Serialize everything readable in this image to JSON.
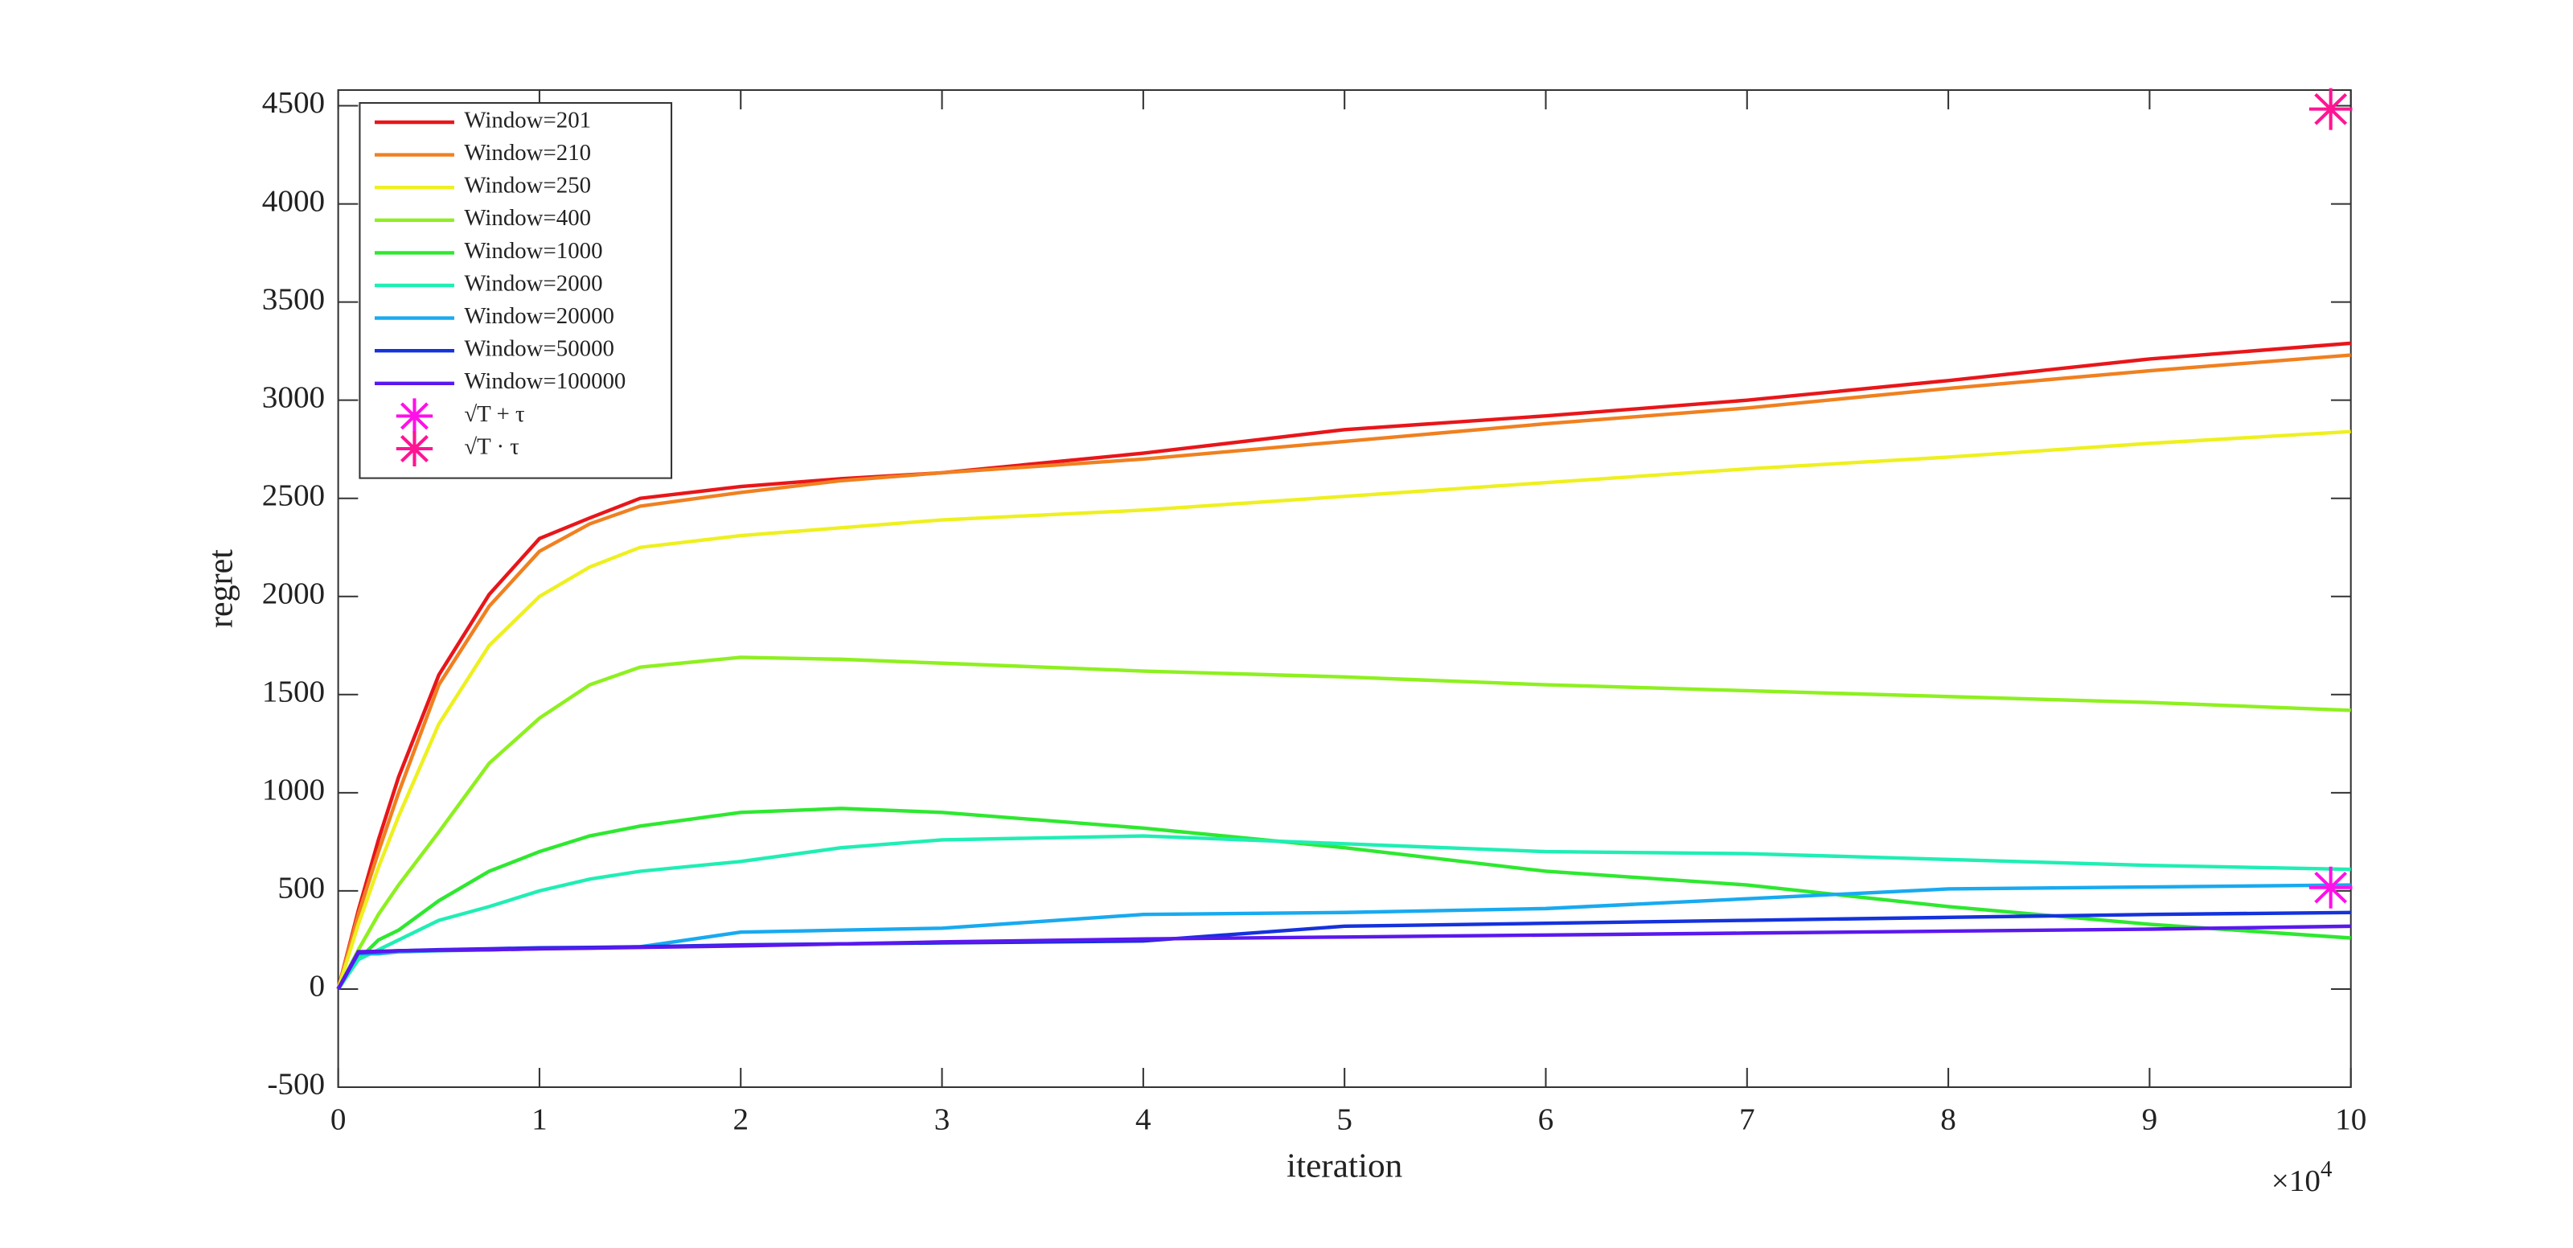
{
  "chart_data": {
    "type": "line",
    "x_label": "iteration",
    "y_label": "regret",
    "x_multiplier": {
      "base": "×10",
      "exponent": "4"
    },
    "x": [
      0,
      1000,
      2000,
      3000,
      5000,
      7500,
      10000,
      12500,
      15000,
      20000,
      25000,
      30000,
      40000,
      50000,
      60000,
      70000,
      80000,
      90000,
      100000
    ],
    "xlim": [
      0,
      100000
    ],
    "xticks": [
      0,
      {
        "value": 10000,
        "label": "1"
      },
      {
        "value": 20000,
        "label": "2"
      },
      {
        "value": 30000,
        "label": "3"
      },
      {
        "value": 40000,
        "label": "4"
      },
      {
        "value": 50000,
        "label": "5"
      },
      {
        "value": 60000,
        "label": "6"
      },
      {
        "value": 70000,
        "label": "7"
      },
      {
        "value": 80000,
        "label": "8"
      },
      {
        "value": 90000,
        "label": "9"
      },
      {
        "value": 100000,
        "label": "10"
      }
    ],
    "ylim": [
      -500,
      4580
    ],
    "yticks": [
      -500,
      0,
      500,
      1000,
      1500,
      2000,
      2500,
      3000,
      3500,
      4000,
      4500
    ],
    "grid": false,
    "legend": "upper left",
    "series": [
      {
        "name": "Window=201",
        "color": "#e8161a",
        "values": [
          0,
          400,
          760,
          1080,
          1600,
          2010,
          2295,
          2400,
          2500,
          2560,
          2600,
          2630,
          2730,
          2850,
          2920,
          3000,
          3100,
          3210,
          3290
        ]
      },
      {
        "name": "Window=210",
        "color": "#f08020",
        "values": [
          0,
          380,
          700,
          1000,
          1550,
          1950,
          2230,
          2370,
          2460,
          2530,
          2590,
          2630,
          2700,
          2790,
          2880,
          2960,
          3060,
          3150,
          3230
        ]
      },
      {
        "name": "Window=250",
        "color": "#eef020",
        "values": [
          0,
          330,
          620,
          880,
          1350,
          1750,
          2000,
          2150,
          2250,
          2310,
          2350,
          2390,
          2440,
          2510,
          2580,
          2650,
          2710,
          2780,
          2840
        ]
      },
      {
        "name": "Window=400",
        "color": "#8ef020",
        "values": [
          0,
          200,
          380,
          530,
          800,
          1150,
          1380,
          1550,
          1640,
          1690,
          1680,
          1660,
          1620,
          1590,
          1550,
          1520,
          1490,
          1460,
          1420
        ]
      },
      {
        "name": "Window=1000",
        "color": "#2ee830",
        "values": [
          0,
          150,
          250,
          300,
          450,
          600,
          700,
          780,
          830,
          900,
          920,
          900,
          820,
          720,
          600,
          530,
          420,
          330,
          260
        ]
      },
      {
        "name": "Window=2000",
        "color": "#20eeb4",
        "values": [
          0,
          150,
          200,
          250,
          350,
          420,
          500,
          560,
          600,
          650,
          720,
          760,
          780,
          740,
          700,
          690,
          660,
          630,
          610
        ]
      },
      {
        "name": "Window=20000",
        "color": "#18aaf0",
        "values": [
          0,
          180,
          180,
          190,
          195,
          200,
          205,
          210,
          215,
          290,
          300,
          310,
          380,
          390,
          410,
          460,
          510,
          520,
          530
        ]
      },
      {
        "name": "Window=50000",
        "color": "#1432dc",
        "values": [
          0,
          185,
          190,
          195,
          200,
          205,
          210,
          212,
          215,
          225,
          230,
          235,
          245,
          320,
          335,
          350,
          365,
          380,
          390
        ]
      },
      {
        "name": "Window=100000",
        "color": "#5a18ee",
        "values": [
          0,
          190,
          192,
          195,
          198,
          200,
          205,
          208,
          212,
          220,
          230,
          240,
          255,
          265,
          275,
          285,
          295,
          305,
          320
        ]
      }
    ],
    "markers": [
      {
        "name": "√T + τ",
        "color": "#ff10e8",
        "x": 99000,
        "y": 517
      },
      {
        "name": "√T · τ",
        "color": "#ff1493",
        "x": 99000,
        "y": 4483
      }
    ]
  }
}
